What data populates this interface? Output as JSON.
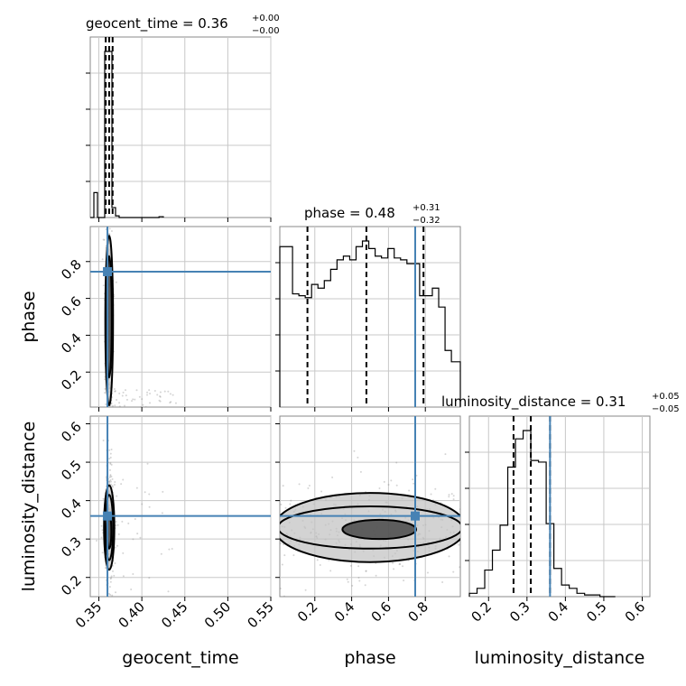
{
  "chart_data": {
    "type": "corner",
    "parameters": [
      "geocent_time",
      "phase",
      "luminosity_distance"
    ],
    "axis_labels": {
      "geocent_time": "geocent_time",
      "phase": "phase",
      "luminosity_distance": "luminosity_distance"
    },
    "colors": {
      "truth": "#4682b4",
      "hist": "#000000",
      "grid": "#c8c8c8"
    },
    "grid": true,
    "truths": {
      "geocent_time": 0.36,
      "phase": 0.745,
      "luminosity_distance": 0.36
    },
    "titles": {
      "geocent_time": {
        "label": "geocent_time = 0.36",
        "plus": "+0.00",
        "minus": "−0.00"
      },
      "phase": {
        "label": "phase = 0.48",
        "plus": "+0.31",
        "minus": "−0.32"
      },
      "luminosity_distance": {
        "label": "luminosity_distance = 0.31",
        "plus": "+0.05",
        "minus": "−0.05"
      }
    },
    "ranges": {
      "geocent_time": [
        0.34,
        0.55
      ],
      "phase": [
        0.01,
        0.99
      ],
      "luminosity_distance": [
        0.15,
        0.62
      ]
    },
    "ticks": {
      "geocent_time": [
        "0.35",
        "0.40",
        "0.45",
        "0.50",
        "0.55"
      ],
      "phase": [
        "0.2",
        "0.4",
        "0.6",
        "0.8"
      ],
      "luminosity_distance_x": [
        "0.2",
        "0.3",
        "0.4",
        "0.5",
        "0.6"
      ],
      "luminosity_distance_y": [
        "0.2",
        "0.3",
        "0.4",
        "0.5",
        "0.6"
      ]
    },
    "quantiles": {
      "geocent_time": [
        0.358,
        0.362,
        0.366
      ],
      "phase": [
        0.16,
        0.48,
        0.79
      ],
      "luminosity_distance": [
        0.265,
        0.31,
        0.36
      ]
    },
    "histograms": {
      "geocent_time": {
        "edges": [
          0.34,
          0.3442,
          0.3484,
          0.3526,
          0.3568,
          0.361,
          0.3652,
          0.3694,
          0.3736,
          0.42,
          0.425
        ],
        "counts": [
          0,
          0.15,
          0,
          0,
          1.0,
          1.0,
          0.06,
          0.01,
          0,
          0.005
        ]
      },
      "phase": {
        "edges": [
          0.01,
          0.0445,
          0.079,
          0.1135,
          0.148,
          0.1825,
          0.217,
          0.2515,
          0.286,
          0.3205,
          0.355,
          0.3895,
          0.424,
          0.4585,
          0.493,
          0.5275,
          0.562,
          0.5965,
          0.631,
          0.6655,
          0.7,
          0.7345,
          0.769,
          0.8035,
          0.838,
          0.8725,
          0.907,
          0.9415,
          0.976,
          0.99
        ],
        "counts": [
          0.85,
          0.85,
          0.6,
          0.59,
          0.58,
          0.65,
          0.63,
          0.67,
          0.73,
          0.78,
          0.8,
          0.78,
          0.85,
          0.88,
          0.84,
          0.8,
          0.79,
          0.84,
          0.79,
          0.78,
          0.76,
          0.76,
          0.59,
          0.59,
          0.63,
          0.53,
          0.3,
          0.24,
          0.24
        ]
      },
      "luminosity_distance": {
        "edges": [
          0.15,
          0.17,
          0.19,
          0.21,
          0.23,
          0.25,
          0.27,
          0.29,
          0.31,
          0.33,
          0.35,
          0.37,
          0.39,
          0.41,
          0.43,
          0.45,
          0.47,
          0.49,
          0.51,
          0.53
        ],
        "counts": [
          0.02,
          0.05,
          0.16,
          0.28,
          0.43,
          0.78,
          0.95,
          1.0,
          0.82,
          0.81,
          0.44,
          0.17,
          0.07,
          0.05,
          0.02,
          0.01,
          0.01,
          0.0,
          0.0
        ]
      }
    },
    "contours": {
      "geocent_time__phase": [
        {
          "cx": 0.362,
          "cy": 0.5,
          "rx": 0.003,
          "ry": 0.33
        },
        {
          "cx": 0.362,
          "cy": 0.48,
          "rx": 0.0045,
          "ry": 0.46
        }
      ],
      "geocent_time__luminosity_distance": [
        {
          "cx": 0.362,
          "cy": 0.32,
          "rx": 0.0025,
          "ry": 0.045
        },
        {
          "cx": 0.362,
          "cy": 0.33,
          "rx": 0.0045,
          "ry": 0.085
        },
        {
          "cx": 0.362,
          "cy": 0.33,
          "rx": 0.006,
          "ry": 0.11
        }
      ],
      "phase__luminosity_distance": [
        {
          "cx": 0.55,
          "cy": 0.325,
          "rx": 0.2,
          "ry": 0.025
        },
        {
          "cx": 0.5,
          "cy": 0.33,
          "rx": 0.5,
          "ry": 0.055
        },
        {
          "cx": 0.5,
          "cy": 0.33,
          "rx": 0.52,
          "ry": 0.09
        }
      ]
    }
  }
}
